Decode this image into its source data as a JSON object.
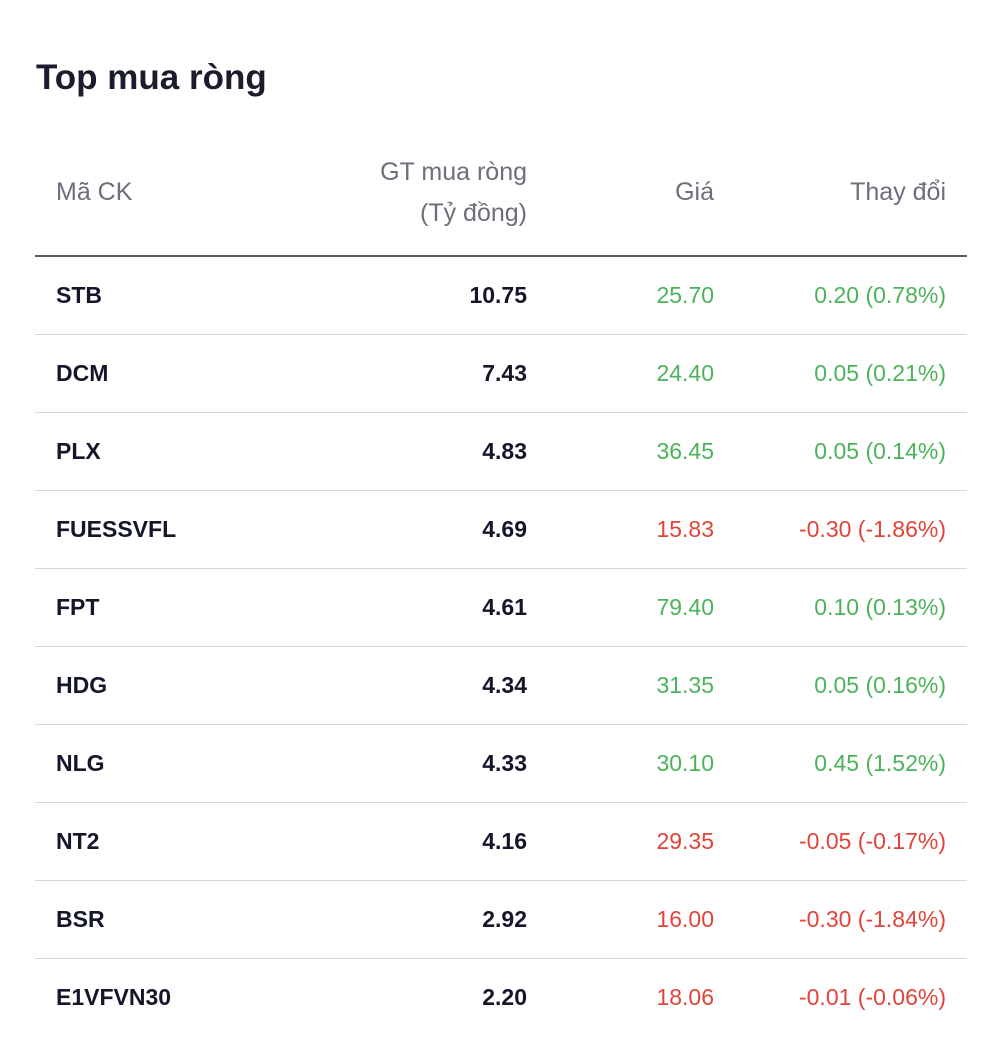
{
  "widget": {
    "title": "Top mua ròng"
  },
  "table": {
    "headers": {
      "code": "Mã CK",
      "value_line1": "GT mua ròng",
      "value_line2": "(Tỷ đồng)",
      "price": "Giá",
      "change": "Thay đổi"
    },
    "rows": [
      {
        "code": "STB",
        "value": "10.75",
        "price": "25.70",
        "change": "0.20 (0.78%)",
        "direction": "up"
      },
      {
        "code": "DCM",
        "value": "7.43",
        "price": "24.40",
        "change": "0.05 (0.21%)",
        "direction": "up"
      },
      {
        "code": "PLX",
        "value": "4.83",
        "price": "36.45",
        "change": "0.05 (0.14%)",
        "direction": "up"
      },
      {
        "code": "FUESSVFL",
        "value": "4.69",
        "price": "15.83",
        "change": "-0.30 (-1.86%)",
        "direction": "down"
      },
      {
        "code": "FPT",
        "value": "4.61",
        "price": "79.40",
        "change": "0.10 (0.13%)",
        "direction": "up"
      },
      {
        "code": "HDG",
        "value": "4.34",
        "price": "31.35",
        "change": "0.05 (0.16%)",
        "direction": "up"
      },
      {
        "code": "NLG",
        "value": "4.33",
        "price": "30.10",
        "change": "0.45 (1.52%)",
        "direction": "up"
      },
      {
        "code": "NT2",
        "value": "4.16",
        "price": "29.35",
        "change": "-0.05 (-0.17%)",
        "direction": "down"
      },
      {
        "code": "BSR",
        "value": "2.92",
        "price": "16.00",
        "change": "-0.30 (-1.84%)",
        "direction": "down"
      },
      {
        "code": "E1VFVN30",
        "value": "2.20",
        "price": "18.06",
        "change": "-0.01 (-0.06%)",
        "direction": "down"
      }
    ]
  },
  "colors": {
    "up": "#4cb35a",
    "down": "#e0443a",
    "text": "#1b1c2e",
    "header_text": "#6c6f7a"
  }
}
